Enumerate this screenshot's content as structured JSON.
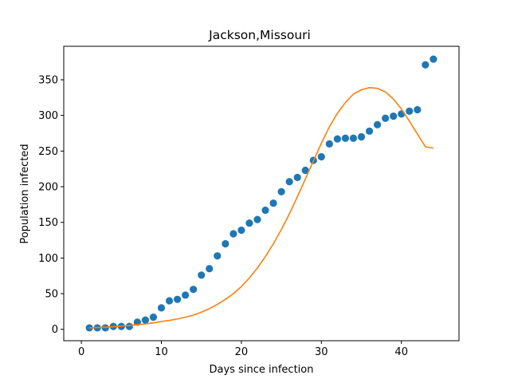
{
  "chart_data": {
    "type": "scatter",
    "title": "Jackson,Missouri",
    "xlabel": "Days since infection",
    "ylabel": "Population infected",
    "xlim": [
      -2.2,
      47.2
    ],
    "ylim": [
      -16,
      397
    ],
    "xticks": [
      0,
      10,
      20,
      30,
      40
    ],
    "yticks": [
      0,
      50,
      100,
      150,
      200,
      250,
      300,
      350
    ],
    "grid": false,
    "series": [
      {
        "kind": "scatter",
        "color": "#1f77b4",
        "x": [
          1,
          2,
          3,
          4,
          5,
          6,
          7,
          8,
          9,
          10,
          11,
          12,
          13,
          14,
          15,
          16,
          17,
          18,
          19,
          20,
          21,
          22,
          23,
          24,
          25,
          26,
          27,
          28,
          29,
          30,
          31,
          32,
          33,
          34,
          35,
          36,
          37,
          38,
          39,
          40,
          41,
          42,
          43,
          44
        ],
        "y": [
          2,
          2,
          2,
          4,
          4,
          4,
          10,
          13,
          17,
          30,
          40,
          42,
          48,
          56,
          76,
          85,
          103,
          120,
          134,
          139,
          149,
          154,
          167,
          177,
          193,
          207,
          213,
          223,
          237,
          242,
          260,
          267,
          268,
          268,
          270,
          278,
          287,
          296,
          299,
          302,
          306,
          308,
          371,
          379
        ]
      },
      {
        "kind": "line",
        "color": "#ff7f0e",
        "x": [
          1,
          2,
          3,
          4,
          5,
          6,
          7,
          8,
          9,
          10,
          11,
          12,
          13,
          14,
          15,
          16,
          17,
          18,
          19,
          20,
          21,
          22,
          23,
          24,
          25,
          26,
          27,
          28,
          29,
          30,
          31,
          32,
          33,
          34,
          35,
          36,
          37,
          38,
          39,
          40,
          41,
          42,
          43,
          44
        ],
        "y": [
          2,
          2.5,
          3,
          3.5,
          4.5,
          5.5,
          6.5,
          7.5,
          9,
          11,
          12.5,
          14.5,
          17,
          20,
          24,
          29,
          35,
          42,
          50,
          60,
          72,
          86,
          102,
          120,
          140,
          162,
          186,
          211,
          236,
          261,
          284,
          303,
          318,
          330,
          336,
          339,
          338,
          333,
          323,
          309,
          292,
          274,
          256,
          254
        ]
      }
    ]
  }
}
